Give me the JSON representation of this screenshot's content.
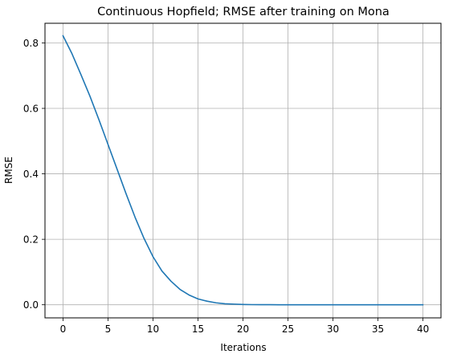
{
  "chart_data": {
    "type": "line",
    "title": "Continuous Hopfield; RMSE after training on Mona",
    "xlabel": "Iterations",
    "ylabel": "RMSE",
    "xlim": [
      -2,
      42
    ],
    "ylim": [
      -0.04,
      0.86
    ],
    "xticks": [
      0,
      5,
      10,
      15,
      20,
      25,
      30,
      35,
      40
    ],
    "xtick_labels": [
      "0",
      "5",
      "10",
      "15",
      "20",
      "25",
      "30",
      "35",
      "40"
    ],
    "yticks": [
      0.0,
      0.2,
      0.4,
      0.6,
      0.8
    ],
    "ytick_labels": [
      "0.0",
      "0.2",
      "0.4",
      "0.6",
      "0.8"
    ],
    "grid": true,
    "legend": "none",
    "series": [
      {
        "color": "#1f77b4",
        "x": [
          0,
          1,
          2,
          3,
          4,
          5,
          6,
          7,
          8,
          9,
          10,
          11,
          12,
          13,
          14,
          15,
          16,
          17,
          18,
          19,
          20,
          21,
          22,
          23,
          24,
          25,
          26,
          27,
          28,
          29,
          30,
          31,
          32,
          33,
          34,
          35,
          36,
          37,
          38,
          39,
          40
        ],
        "y": [
          0.822,
          0.767,
          0.703,
          0.637,
          0.565,
          0.49,
          0.415,
          0.34,
          0.268,
          0.203,
          0.147,
          0.103,
          0.072,
          0.047,
          0.03,
          0.018,
          0.011,
          0.006,
          0.003,
          0.002,
          0.001,
          0.0005,
          0.0003,
          0.0002,
          0.0001,
          0,
          0,
          0,
          0,
          0,
          0,
          0,
          0,
          0,
          0,
          0,
          0,
          0,
          0,
          0,
          0
        ]
      }
    ]
  }
}
